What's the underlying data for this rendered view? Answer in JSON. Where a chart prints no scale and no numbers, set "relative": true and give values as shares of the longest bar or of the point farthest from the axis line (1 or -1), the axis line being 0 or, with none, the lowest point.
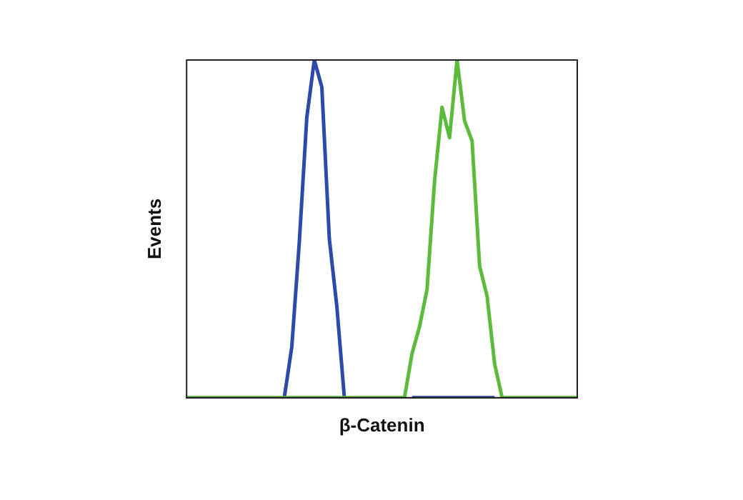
{
  "chart_data": {
    "type": "line",
    "relative": true,
    "xlabel": "β-Catenin",
    "ylabel": "Events",
    "legend": false,
    "categories": [
      null,
      null,
      null,
      null,
      null,
      null,
      null,
      null,
      null,
      null,
      null,
      null,
      null,
      null,
      null,
      null,
      null,
      null,
      null,
      null,
      null,
      null,
      null,
      null,
      null,
      null,
      null,
      null,
      null,
      null,
      null,
      null,
      null,
      null,
      null,
      null,
      null,
      null,
      null,
      null,
      null,
      null,
      null,
      null,
      null,
      null,
      null,
      null,
      null,
      null,
      null,
      null,
      null
    ],
    "series": [
      {
        "color": "#2d4aa8",
        "values": [
          null,
          null,
          null,
          null,
          null,
          null,
          null,
          null,
          null,
          null,
          null,
          null,
          null,
          0,
          0.15,
          0.46,
          0.83,
          1,
          0.92,
          0.47,
          0.27,
          0,
          null,
          null,
          null,
          null,
          null,
          null,
          null,
          null,
          0,
          0,
          0,
          0,
          0,
          0,
          0,
          0,
          0,
          0,
          0,
          0,
          null,
          null,
          null,
          null,
          null,
          null,
          null,
          null,
          null,
          null,
          null
        ]
      },
      {
        "color": "#5cbb3e",
        "values": [
          0,
          0,
          0,
          0,
          0,
          0,
          0,
          0,
          0,
          0,
          0,
          0,
          0,
          0,
          0,
          0,
          0,
          0,
          0,
          0,
          0,
          0,
          0,
          0,
          0,
          0,
          0,
          0,
          0,
          0,
          0.13,
          0.21,
          0.32,
          0.64,
          0.86,
          0.77,
          1,
          0.82,
          0.76,
          0.39,
          0.3,
          0.1,
          0,
          0,
          0,
          0,
          0,
          0,
          0,
          0,
          0,
          0,
          0
        ]
      }
    ]
  }
}
